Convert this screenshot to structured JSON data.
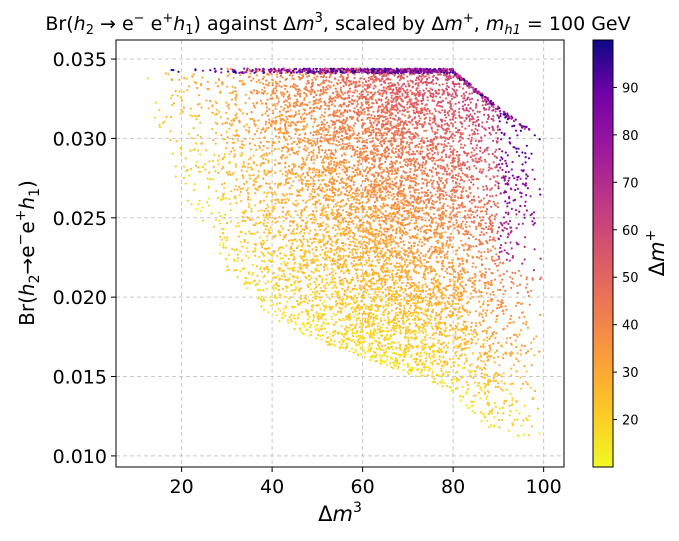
{
  "chart_data": {
    "type": "scatter",
    "title": "Br(h₂ → e⁻ e⁺ h₁) against Δm³, scaled by Δm⁺, m_h1 = 100 GeV",
    "title_parts": {
      "p1": "Br(",
      "h2_main": "h",
      "h2_sub": "2",
      "arrow_e": " → e",
      "minus": "−",
      "e_plus": " e",
      "plus": "+",
      "h1_main": "h",
      "h1_sub": "1",
      "p2": ") against Δ",
      "m": "m",
      "three": "3",
      "p3": ", scaled by Δ",
      "m2": "m",
      "plus2": "+",
      "comma": ", ",
      "mh": "m",
      "mh_sub": "h1",
      "p4": " = 100 GeV"
    },
    "xlabel": "Δm³",
    "xlabel_parts": {
      "delta": "Δ",
      "m": "m",
      "sup": "3"
    },
    "ylabel": "Br(h₂→e⁻e⁺h₁)",
    "ylabel_parts": {
      "p1": "Br(",
      "h": "h",
      "sub2": "2",
      "arrow_e": "→e",
      "minus": "−",
      "e": "e",
      "plus": "+",
      "h2": "h",
      "sub1": "1",
      "close": ")"
    },
    "colorbar_label": "Δm⁺",
    "colorbar_label_parts": {
      "delta": "Δ",
      "m": "m",
      "sup": "+"
    },
    "xlim": [
      5.5,
      104.5
    ],
    "ylim": [
      0.0093,
      0.0362
    ],
    "xticks": [
      20,
      40,
      60,
      80,
      100
    ],
    "xtick_labels": [
      "20",
      "40",
      "60",
      "80",
      "100"
    ],
    "yticks": [
      0.01,
      0.015,
      0.02,
      0.025,
      0.03,
      0.035
    ],
    "ytick_labels": [
      "0.010",
      "0.015",
      "0.020",
      "0.025",
      "0.030",
      "0.035"
    ],
    "color_range": [
      10,
      100
    ],
    "colorbar_ticks": [
      20,
      30,
      40,
      50,
      60,
      70,
      80,
      90
    ],
    "colorbar_tick_labels": [
      "20",
      "30",
      "40",
      "50",
      "60",
      "70",
      "80",
      "90"
    ],
    "colormap": "plasma_r",
    "grid": true,
    "grid_style": "dashed",
    "point_count": 9000,
    "distribution": {
      "x_range": [
        10,
        100
      ],
      "y_max": 0.0346,
      "color_variable": "Δm⁺",
      "lower_edge_points": [
        [
          10,
          0.0345
        ],
        [
          20,
          0.0265
        ],
        [
          30,
          0.0215
        ],
        [
          40,
          0.0187
        ],
        [
          50,
          0.0172
        ],
        [
          60,
          0.0162
        ],
        [
          70,
          0.0152
        ],
        [
          80,
          0.014
        ],
        [
          90,
          0.011
        ],
        [
          100,
          0.011
        ]
      ],
      "upper_band_value": 0.0344,
      "upper_band_x_range": [
        10,
        80
      ],
      "high_color_tail": [
        [
          80,
          0.0343
        ],
        [
          90,
          0.032
        ],
        [
          100,
          0.03
        ]
      ]
    }
  }
}
